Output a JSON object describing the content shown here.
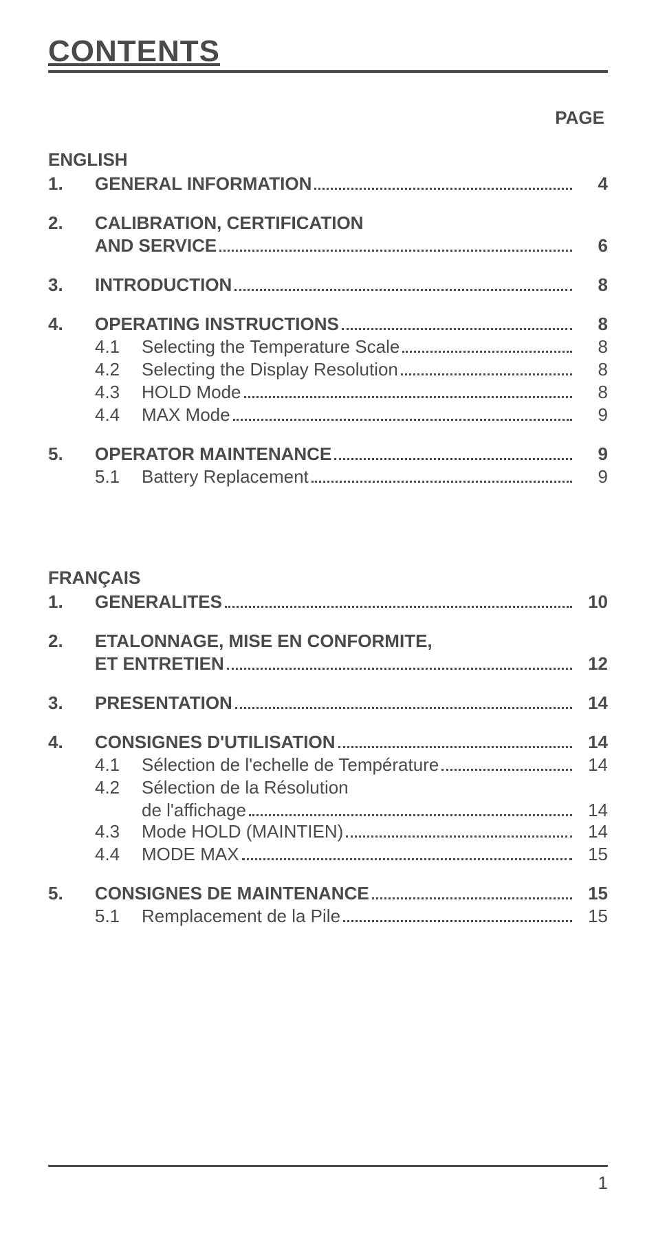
{
  "title": "CONTENTS",
  "page_label": "PAGE",
  "footer_page": "1",
  "languages": [
    {
      "name": "ENGLISH",
      "entries": [
        {
          "num": "1.",
          "text": "GENERAL INFORMATION",
          "page": "4",
          "bold": true,
          "sub": []
        },
        {
          "num": "2.",
          "text": "CALIBRATION, CERTIFICATION",
          "text2": "AND SERVICE",
          "page": "6",
          "bold": true,
          "sub": []
        },
        {
          "num": "3.",
          "text": "INTRODUCTION",
          "page": "8",
          "bold": true,
          "sub": []
        },
        {
          "num": "4.",
          "text": "OPERATING INSTRUCTIONS",
          "page": "8",
          "bold": true,
          "sub": [
            {
              "num": "4.1",
              "text": "Selecting the Temperature Scale",
              "page": "8"
            },
            {
              "num": "4.2",
              "text": "Selecting the Display Resolution",
              "page": "8"
            },
            {
              "num": "4.3",
              "text": "HOLD Mode",
              "page": "8"
            },
            {
              "num": "4.4",
              "text": "MAX Mode",
              "page": "9"
            }
          ]
        },
        {
          "num": "5.",
          "text": "OPERATOR MAINTENANCE",
          "page": "9",
          "bold": true,
          "sub": [
            {
              "num": "5.1",
              "text": "Battery Replacement",
              "page": "9"
            }
          ]
        }
      ]
    },
    {
      "name": "FRANÇAIS",
      "entries": [
        {
          "num": "1.",
          "text": "GENERALITES",
          "page": "10",
          "bold": true,
          "sub": []
        },
        {
          "num": "2.",
          "text": "ETALONNAGE, MISE EN CONFORMITE,",
          "text2": "ET ENTRETIEN",
          "page": "12",
          "bold": true,
          "sub": []
        },
        {
          "num": "3.",
          "text": "PRESENTATION",
          "page": "14",
          "bold": true,
          "sub": []
        },
        {
          "num": "4.",
          "text": "CONSIGNES D'UTILISATION",
          "page": "14",
          "bold": true,
          "sub": [
            {
              "num": "4.1",
              "text": "Sélection de l'echelle de Température",
              "page": "14"
            },
            {
              "num": "4.2",
              "text": "Sélection de la Résolution",
              "text2": "de l'affichage",
              "page": "14"
            },
            {
              "num": "4.3",
              "text": "Mode HOLD (MAINTIEN)",
              "page": "14"
            },
            {
              "num": "4.4",
              "text": "MODE MAX",
              "page": "15"
            }
          ]
        },
        {
          "num": "5.",
          "text": "CONSIGNES DE MAINTENANCE",
          "page": "15",
          "bold": true,
          "sub": [
            {
              "num": "5.1",
              "text": "Remplacement de la Pile",
              "page": "15"
            }
          ]
        }
      ]
    }
  ]
}
